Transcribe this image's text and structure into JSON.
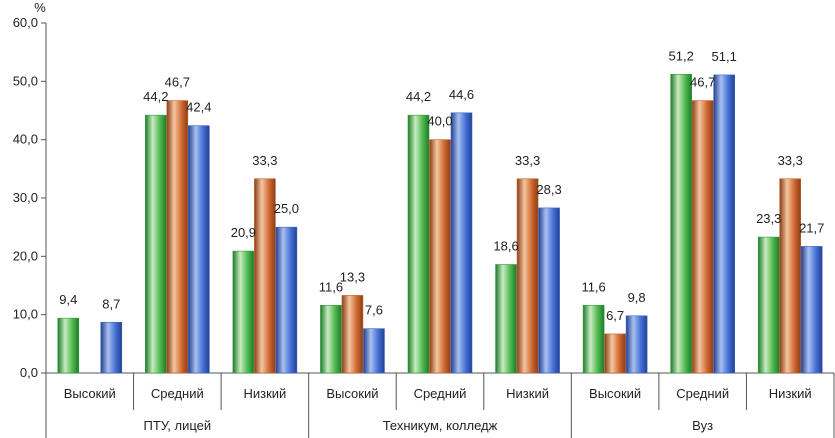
{
  "chart_data": {
    "type": "bar",
    "unit": "%",
    "ylim": [
      0,
      60
    ],
    "yticks": [
      "0,0",
      "10,0",
      "20,0",
      "30,0",
      "40,0",
      "50,0",
      "60,0"
    ],
    "groups": [
      {
        "label": "ПТУ, лицей",
        "categories": [
          {
            "label": "Высокий",
            "values": [
              9.4,
              null,
              8.7
            ],
            "labels": [
              "9,4",
              "",
              "8,7"
            ]
          },
          {
            "label": "Средний",
            "values": [
              44.2,
              46.7,
              42.4
            ],
            "labels": [
              "44,2",
              "46,7",
              "42,4"
            ]
          },
          {
            "label": "Низкий",
            "values": [
              20.9,
              33.3,
              25.0
            ],
            "labels": [
              "20,9",
              "33,3",
              "25,0"
            ]
          }
        ]
      },
      {
        "label": "Техникум, колледж",
        "categories": [
          {
            "label": "Высокий",
            "values": [
              11.6,
              13.3,
              7.6
            ],
            "labels": [
              "11,6",
              "13,3",
              "7,6"
            ]
          },
          {
            "label": "Средний",
            "values": [
              44.2,
              40.0,
              44.6
            ],
            "labels": [
              "44,2",
              "40,0",
              "44,6"
            ]
          },
          {
            "label": "Низкий",
            "values": [
              18.6,
              33.3,
              28.3
            ],
            "labels": [
              "18,6",
              "33,3",
              "28,3"
            ]
          }
        ]
      },
      {
        "label": "Вуз",
        "categories": [
          {
            "label": "Высокий",
            "values": [
              11.6,
              6.7,
              9.8
            ],
            "labels": [
              "11,6",
              "6,7",
              "9,8"
            ]
          },
          {
            "label": "Средний",
            "values": [
              51.2,
              46.7,
              51.1
            ],
            "labels": [
              "51,2",
              "46,7",
              "51,1"
            ]
          },
          {
            "label": "Низкий",
            "values": [
              23.3,
              33.3,
              21.7
            ],
            "labels": [
              "23,3",
              "33,3",
              "21,7"
            ]
          }
        ]
      }
    ],
    "series_colors": [
      "#2e9e3a",
      "#c0622a",
      "#3b62c4"
    ],
    "grid": false,
    "legend": "none"
  }
}
